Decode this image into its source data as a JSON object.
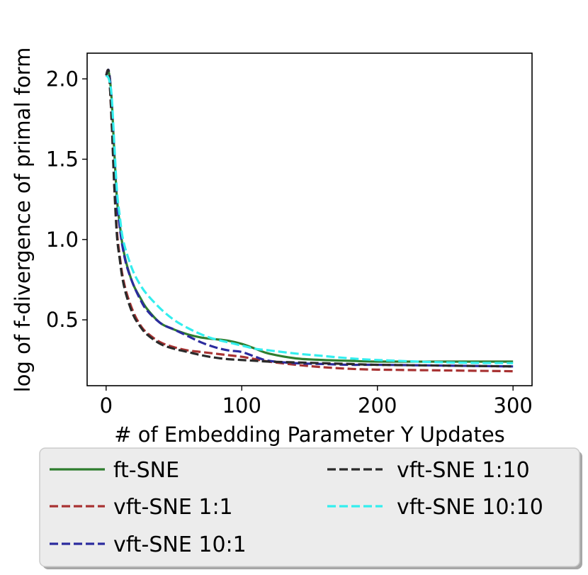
{
  "chart_data": {
    "type": "line",
    "title": "",
    "xlabel": "# of Embedding Parameter Y Updates",
    "ylabel": "log of f-divergence of primal form",
    "xlim": [
      -14,
      314
    ],
    "ylim": [
      0.09,
      2.16
    ],
    "xticks": [
      0,
      100,
      200,
      300
    ],
    "yticks": [
      0.5,
      1.0,
      1.5,
      2.0
    ],
    "xtick_labels": [
      "0",
      "100",
      "200",
      "300"
    ],
    "ytick_labels": [
      "0.5",
      "1.0",
      "1.5",
      "2.0"
    ],
    "legend_position": "below",
    "legend_columns": 2,
    "series": [
      {
        "name": "ft-SNE",
        "color": "#2e7d2e",
        "dash": "solid",
        "x": [
          0,
          2,
          4,
          6,
          8,
          10,
          12,
          15,
          20,
          25,
          30,
          40,
          50,
          60,
          70,
          80,
          90,
          100,
          110,
          120,
          140,
          160,
          180,
          200,
          250,
          300
        ],
        "y": [
          2.02,
          2.04,
          1.88,
          1.55,
          1.25,
          1.1,
          0.97,
          0.85,
          0.72,
          0.64,
          0.57,
          0.48,
          0.44,
          0.41,
          0.39,
          0.38,
          0.37,
          0.35,
          0.32,
          0.29,
          0.26,
          0.25,
          0.245,
          0.24,
          0.24,
          0.24
        ]
      },
      {
        "name": "vft-SNE 1:1",
        "color": "#a83232",
        "dash": "dashed",
        "x": [
          0,
          2,
          4,
          6,
          8,
          10,
          12,
          15,
          20,
          25,
          30,
          40,
          50,
          60,
          70,
          80,
          90,
          100,
          110,
          120,
          140,
          160,
          180,
          200,
          250,
          300
        ],
        "y": [
          2.02,
          2.04,
          1.75,
          1.35,
          1.05,
          0.9,
          0.78,
          0.67,
          0.55,
          0.47,
          0.42,
          0.36,
          0.33,
          0.31,
          0.3,
          0.29,
          0.28,
          0.27,
          0.255,
          0.24,
          0.22,
          0.205,
          0.195,
          0.19,
          0.185,
          0.18
        ]
      },
      {
        "name": "vft-SNE 10:1",
        "color": "#2b2b9e",
        "dash": "dashed",
        "x": [
          0,
          2,
          4,
          6,
          8,
          10,
          12,
          15,
          20,
          25,
          30,
          40,
          50,
          60,
          70,
          80,
          90,
          100,
          110,
          120,
          140,
          160,
          180,
          200,
          250,
          300
        ],
        "y": [
          2.02,
          2.05,
          1.87,
          1.52,
          1.23,
          1.08,
          0.96,
          0.84,
          0.72,
          0.63,
          0.56,
          0.48,
          0.44,
          0.4,
          0.36,
          0.33,
          0.31,
          0.3,
          0.27,
          0.245,
          0.23,
          0.225,
          0.22,
          0.22,
          0.215,
          0.21
        ]
      },
      {
        "name": "vft-SNE 1:10",
        "color": "#2a2a2a",
        "dash": "dashed",
        "x": [
          0,
          2,
          4,
          6,
          8,
          10,
          12,
          15,
          20,
          25,
          30,
          40,
          50,
          60,
          70,
          80,
          90,
          100,
          110,
          120,
          140,
          160,
          180,
          200,
          250,
          300
        ],
        "y": [
          2.02,
          2.04,
          1.75,
          1.33,
          1.02,
          0.88,
          0.76,
          0.65,
          0.53,
          0.46,
          0.41,
          0.35,
          0.32,
          0.3,
          0.28,
          0.265,
          0.255,
          0.25,
          0.245,
          0.24,
          0.235,
          0.23,
          0.225,
          0.22,
          0.215,
          0.21
        ]
      },
      {
        "name": "vft-SNE 10:10",
        "color": "#33eeee",
        "dash": "dashed",
        "x": [
          0,
          2,
          4,
          6,
          8,
          10,
          12,
          15,
          20,
          25,
          30,
          40,
          50,
          60,
          70,
          80,
          90,
          100,
          110,
          120,
          140,
          160,
          180,
          200,
          250,
          300
        ],
        "y": [
          2.02,
          2.0,
          1.9,
          1.6,
          1.3,
          1.15,
          1.02,
          0.92,
          0.8,
          0.72,
          0.66,
          0.57,
          0.5,
          0.45,
          0.41,
          0.38,
          0.36,
          0.34,
          0.32,
          0.31,
          0.29,
          0.275,
          0.26,
          0.25,
          0.235,
          0.23
        ]
      }
    ]
  }
}
